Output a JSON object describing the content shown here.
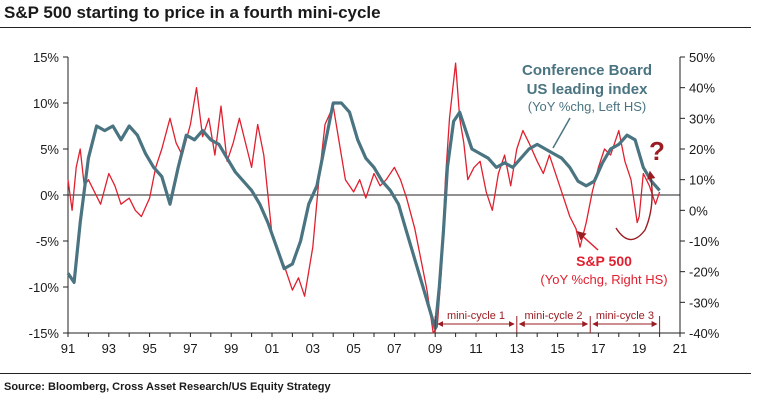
{
  "title": "S&P 500 starting to price in a fourth mini-cycle",
  "source": "Source: Bloomberg, Cross Asset Research/US Equity Strategy",
  "colors": {
    "leading_index": "#4a7481",
    "sp500": "#e0202f",
    "annotation": "#9b1c22"
  },
  "chart_data": {
    "type": "line",
    "title": "S&P 500 starting to price in a fourth mini-cycle",
    "x_tick_labels": [
      "91",
      "93",
      "95",
      "97",
      "99",
      "01",
      "03",
      "05",
      "07",
      "09",
      "11",
      "13",
      "15",
      "17",
      "19",
      "21"
    ],
    "xlim": [
      1991,
      2021
    ],
    "left_axis": {
      "ylim": [
        -15,
        15
      ],
      "tick_labels": [
        "15%",
        "10%",
        "5%",
        "0%",
        "-5%",
        "-10%",
        "-15%"
      ],
      "tick_values": [
        15,
        10,
        5,
        0,
        -5,
        -10,
        -15
      ]
    },
    "right_axis": {
      "ylim": [
        -40,
        50
      ],
      "tick_labels": [
        "50%",
        "40%",
        "30%",
        "20%",
        "10%",
        "0%",
        "-10%",
        "-20%",
        "-30%",
        "-40%"
      ],
      "tick_values": [
        50,
        40,
        30,
        20,
        10,
        0,
        -10,
        -20,
        -30,
        -40
      ]
    },
    "grid": false,
    "series": [
      {
        "name": "Conference Board US leading index",
        "axis": "left",
        "x": [
          1991.0,
          1991.3,
          1991.6,
          1992.0,
          1992.4,
          1992.8,
          1993.2,
          1993.6,
          1994.0,
          1994.4,
          1994.8,
          1995.2,
          1995.6,
          1996.0,
          1996.4,
          1996.8,
          1997.2,
          1997.6,
          1998.0,
          1998.4,
          1998.8,
          1999.2,
          1999.6,
          2000.0,
          2000.4,
          2000.8,
          2001.2,
          2001.6,
          2002.0,
          2002.4,
          2002.8,
          2003.2,
          2003.6,
          2004.0,
          2004.4,
          2004.8,
          2005.2,
          2005.6,
          2006.0,
          2006.4,
          2006.8,
          2007.2,
          2007.6,
          2008.0,
          2008.4,
          2008.8,
          2009.0,
          2009.2,
          2009.4,
          2009.6,
          2009.9,
          2010.2,
          2010.5,
          2010.8,
          2011.2,
          2011.6,
          2012.0,
          2012.4,
          2012.8,
          2013.2,
          2013.6,
          2014.0,
          2014.4,
          2014.8,
          2015.2,
          2015.6,
          2016.0,
          2016.4,
          2016.8,
          2017.2,
          2017.6,
          2018.0,
          2018.4,
          2018.8,
          2019.2,
          2019.6,
          2020.0
        ],
        "values": [
          -8.5,
          -9.5,
          -3.0,
          4.0,
          7.5,
          7.0,
          7.5,
          6.0,
          7.5,
          6.5,
          4.5,
          3.0,
          2.0,
          -1.0,
          3.0,
          6.5,
          6.0,
          7.0,
          6.0,
          5.5,
          4.0,
          2.5,
          1.5,
          0.5,
          -1.0,
          -3.0,
          -5.5,
          -8.0,
          -7.5,
          -5.0,
          -1.0,
          1.0,
          5.5,
          10.0,
          10.0,
          9.0,
          6.0,
          4.0,
          3.0,
          1.5,
          0.5,
          -1.0,
          -4.0,
          -7.0,
          -10.0,
          -13.0,
          -14.5,
          -10.0,
          -4.0,
          3.0,
          8.0,
          9.0,
          7.0,
          5.0,
          4.5,
          4.0,
          3.0,
          3.5,
          3.0,
          4.0,
          5.0,
          5.5,
          5.0,
          4.5,
          4.0,
          3.0,
          1.5,
          1.0,
          1.5,
          3.5,
          5.0,
          5.5,
          6.5,
          6.0,
          3.0,
          1.5,
          0.5
        ]
      },
      {
        "name": "S&P 500",
        "axis": "right",
        "x": [
          1991.0,
          1991.2,
          1991.4,
          1991.6,
          1991.8,
          1992.0,
          1992.3,
          1992.6,
          1993.0,
          1993.3,
          1993.6,
          1994.0,
          1994.3,
          1994.6,
          1995.0,
          1995.3,
          1995.6,
          1996.0,
          1996.3,
          1996.6,
          1997.0,
          1997.3,
          1997.6,
          1997.9,
          1998.2,
          1998.5,
          1998.8,
          1999.1,
          1999.4,
          1999.7,
          2000.0,
          2000.3,
          2000.6,
          2001.0,
          2001.3,
          2001.6,
          2002.0,
          2002.3,
          2002.6,
          2003.0,
          2003.3,
          2003.6,
          2004.0,
          2004.3,
          2004.6,
          2005.0,
          2005.3,
          2005.6,
          2006.0,
          2006.3,
          2006.6,
          2007.0,
          2007.3,
          2007.6,
          2008.0,
          2008.3,
          2008.6,
          2008.9,
          2009.1,
          2009.3,
          2009.5,
          2009.7,
          2010.0,
          2010.2,
          2010.4,
          2010.6,
          2010.9,
          2011.2,
          2011.5,
          2011.8,
          2012.1,
          2012.4,
          2012.7,
          2013.0,
          2013.3,
          2013.6,
          2014.0,
          2014.3,
          2014.6,
          2015.0,
          2015.3,
          2015.6,
          2015.9,
          2016.1,
          2016.4,
          2016.7,
          2017.0,
          2017.3,
          2017.6,
          2018.0,
          2018.3,
          2018.6,
          2018.9,
          2019.0,
          2019.2,
          2019.5,
          2019.8,
          2020.0
        ],
        "values": [
          10,
          0,
          14,
          20,
          8,
          10,
          6,
          2,
          12,
          8,
          2,
          4,
          0,
          -2,
          4,
          14,
          20,
          30,
          22,
          18,
          28,
          40,
          24,
          30,
          18,
          34,
          16,
          22,
          30,
          22,
          14,
          28,
          18,
          -8,
          -14,
          -18,
          -26,
          -22,
          -28,
          -12,
          10,
          28,
          34,
          22,
          10,
          6,
          10,
          4,
          12,
          8,
          10,
          14,
          10,
          4,
          -6,
          -16,
          -26,
          -40,
          -38,
          -20,
          10,
          30,
          48,
          30,
          22,
          10,
          14,
          16,
          6,
          0,
          12,
          18,
          8,
          20,
          26,
          22,
          16,
          12,
          18,
          10,
          4,
          -2,
          -6,
          -12,
          -4,
          6,
          14,
          20,
          18,
          26,
          16,
          10,
          -4,
          -2,
          12,
          8,
          2,
          6
        ]
      }
    ],
    "annotations": {
      "leading_index_label": [
        "Conference Board",
        "US leading index"
      ],
      "leading_index_sublabel": "(YoY %chg, Left HS)",
      "sp500_label": "S&P 500",
      "sp500_sublabel": "(YoY %chg, Right HS)",
      "question_mark": "?",
      "mini_cycles": [
        {
          "label": "mini-cycle 1",
          "start": 2009.0,
          "end": 2013.0
        },
        {
          "label": "mini-cycle 2",
          "start": 2013.0,
          "end": 2016.6
        },
        {
          "label": "mini-cycle 3",
          "start": 2016.6,
          "end": 2020.0
        }
      ]
    }
  }
}
